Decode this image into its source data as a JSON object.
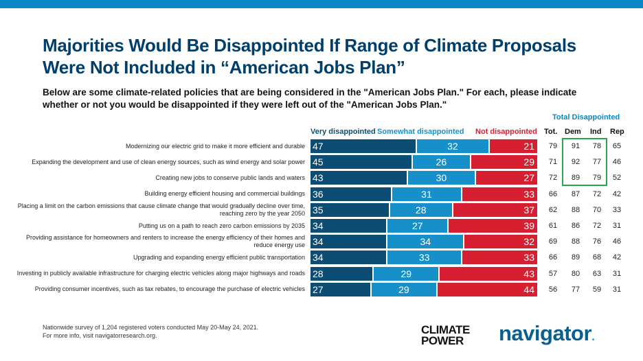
{
  "title": "Majorities Would Be Disappointed If Range of Climate Proposals Were Not Included in “American Jobs Plan”",
  "subtitle": "Below are some climate-related policies that are being considered in the \"American Jobs Plan.\" For each, please indicate whether or not you would be disappointed if they were left out of the \"American Jobs Plan.\"",
  "colors": {
    "very": "#0d4d73",
    "somewhat": "#1790c9",
    "not": "#d62031",
    "accent_bar": "#0a87c7",
    "highlight": "#29a84a"
  },
  "chart_data": {
    "type": "bar",
    "stacked": true,
    "orientation": "horizontal",
    "legend_position": "top",
    "categories": [
      "Modernizing our electric grid to make it more efficient and durable",
      "Expanding the development and use of clean energy sources, such as wind energy and solar power",
      "Creating new jobs to conserve public lands and waters",
      "Building energy efficient housing and commercial buildings",
      "Placing a limit on the carbon emissions that cause climate change that would gradually decline over time, reaching zero by the year 2050",
      "Putting us on a path to reach zero carbon emissions by 2035",
      "Providing assistance for homeowners and renters to increase the energy efficiency of their homes and reduce energy use",
      "Upgrading and expanding energy efficient public transportation",
      "Investing in publicly available infrastructure for charging electric vehicles along major highways and roads",
      "Providing consumer incentives, such as tax rebates, to encourage the purchase of electric vehicles"
    ],
    "series": [
      {
        "name": "Very disappointed",
        "values": [
          47,
          45,
          43,
          36,
          35,
          34,
          34,
          34,
          28,
          27
        ]
      },
      {
        "name": "Somewhat disappointed",
        "values": [
          32,
          26,
          30,
          31,
          28,
          27,
          34,
          33,
          29,
          29
        ]
      },
      {
        "name": "Not disappointed",
        "values": [
          21,
          29,
          27,
          33,
          37,
          39,
          32,
          33,
          43,
          44
        ]
      }
    ],
    "table": {
      "group_label": "Total Disappointed",
      "columns": [
        "Tot.",
        "Dem",
        "Ind",
        "Rep"
      ],
      "rows": [
        [
          79,
          91,
          78,
          65
        ],
        [
          71,
          92,
          77,
          46
        ],
        [
          72,
          89,
          79,
          52
        ],
        [
          66,
          87,
          72,
          42
        ],
        [
          62,
          88,
          70,
          33
        ],
        [
          61,
          86,
          72,
          31
        ],
        [
          69,
          88,
          76,
          46
        ],
        [
          66,
          89,
          68,
          42
        ],
        [
          57,
          80,
          63,
          31
        ],
        [
          56,
          77,
          59,
          31
        ]
      ]
    }
  },
  "footer": {
    "line1": "Nationwide survey of 1,204 registered voters conducted May 20-May 24, 2021.",
    "line2": "For more info, visit navigatorresearch.org."
  },
  "logos": {
    "climate_power_line1": "CLIMATE",
    "climate_power_line2": "POWER",
    "navigator": "navigator",
    "navigator_dot": "."
  }
}
